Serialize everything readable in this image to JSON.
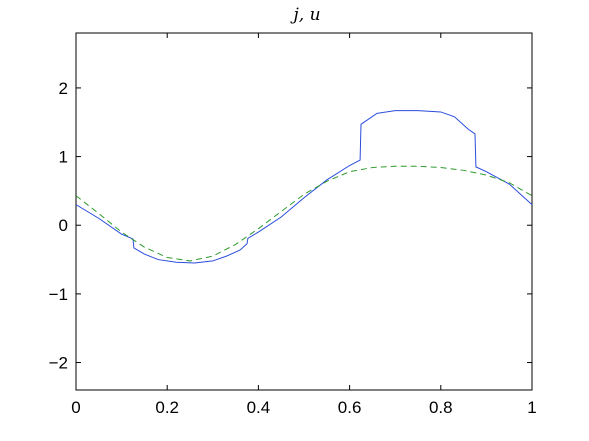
{
  "chart_data": {
    "type": "line",
    "title": "j, u",
    "xlabel": "",
    "ylabel": "",
    "xlim": [
      0,
      1
    ],
    "ylim": [
      -2.4,
      2.8
    ],
    "grid": false,
    "x_ticks": [
      0,
      0.2,
      0.4,
      0.6,
      0.8,
      1
    ],
    "x_tick_labels": [
      "0",
      "0.2",
      "0.4",
      "0.6",
      "0.8",
      "1"
    ],
    "y_ticks": [
      -2,
      -1,
      0,
      1,
      2
    ],
    "y_tick_labels": [
      "−2",
      "−1",
      "0",
      "1",
      "2"
    ],
    "series": [
      {
        "style": "solid",
        "color": "#2b4cdc",
        "points": [
          [
            0,
            0.3
          ],
          [
            0.05,
            0.1
          ],
          [
            0.1,
            -0.13
          ],
          [
            0.125,
            -0.2
          ],
          [
            0.127,
            -0.33
          ],
          [
            0.15,
            -0.42
          ],
          [
            0.18,
            -0.5
          ],
          [
            0.22,
            -0.54
          ],
          [
            0.26,
            -0.55
          ],
          [
            0.3,
            -0.52
          ],
          [
            0.33,
            -0.45
          ],
          [
            0.36,
            -0.36
          ],
          [
            0.375,
            -0.27
          ],
          [
            0.377,
            -0.19
          ],
          [
            0.4,
            -0.1
          ],
          [
            0.45,
            0.12
          ],
          [
            0.5,
            0.4
          ],
          [
            0.55,
            0.66
          ],
          [
            0.6,
            0.87
          ],
          [
            0.623,
            0.95
          ],
          [
            0.625,
            1.47
          ],
          [
            0.66,
            1.63
          ],
          [
            0.7,
            1.67
          ],
          [
            0.75,
            1.67
          ],
          [
            0.8,
            1.65
          ],
          [
            0.83,
            1.58
          ],
          [
            0.86,
            1.4
          ],
          [
            0.875,
            1.33
          ],
          [
            0.877,
            0.85
          ],
          [
            0.9,
            0.78
          ],
          [
            0.95,
            0.6
          ],
          [
            1.0,
            0.3
          ]
        ]
      },
      {
        "style": "dashed",
        "color": "#2e9a2e",
        "points": [
          [
            0,
            0.43
          ],
          [
            0.05,
            0.17
          ],
          [
            0.1,
            -0.1
          ],
          [
            0.15,
            -0.32
          ],
          [
            0.2,
            -0.47
          ],
          [
            0.25,
            -0.52
          ],
          [
            0.3,
            -0.45
          ],
          [
            0.35,
            -0.28
          ],
          [
            0.4,
            -0.05
          ],
          [
            0.45,
            0.2
          ],
          [
            0.5,
            0.45
          ],
          [
            0.55,
            0.64
          ],
          [
            0.6,
            0.78
          ],
          [
            0.65,
            0.84
          ],
          [
            0.7,
            0.86
          ],
          [
            0.75,
            0.86
          ],
          [
            0.8,
            0.84
          ],
          [
            0.85,
            0.8
          ],
          [
            0.9,
            0.73
          ],
          [
            0.95,
            0.62
          ],
          [
            1.0,
            0.43
          ]
        ]
      }
    ]
  }
}
